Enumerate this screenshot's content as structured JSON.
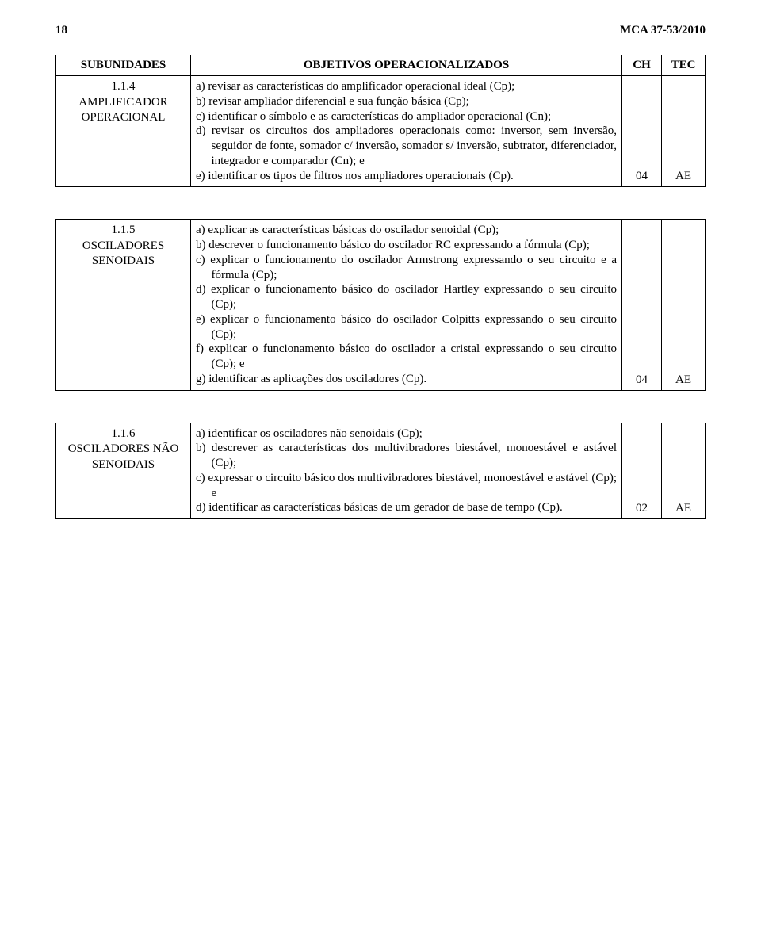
{
  "page": {
    "number": "18",
    "doc_ref": "MCA 37-53/2010"
  },
  "table_headers": {
    "subunidades": "SUBUNIDADES",
    "objetivos": "OBJETIVOS OPERACIONALIZADOS",
    "ch": "CH",
    "tec": "TEC"
  },
  "unit_1_1_4": {
    "code": "1.1.4",
    "title_line1": "AMPLIFICADOR",
    "title_line2": "OPERACIONAL",
    "items": {
      "a": "a) revisar as características do amplificador operacional ideal (Cp);",
      "b": "b) revisar ampliador diferencial e sua função básica (Cp);",
      "c": "c) identificar o símbolo e as características do ampliador operacional (Cn);",
      "d": "d) revisar os circuitos dos ampliadores operacionais como: inversor, sem inversão, seguidor de fonte, somador c/ inversão, somador s/ inversão, subtrator, diferenciador, integrador e comparador (Cn); e",
      "e": "e) identificar os tipos de filtros nos ampliadores operacionais (Cp)."
    },
    "ch": "04",
    "tec": "AE"
  },
  "unit_1_1_5": {
    "code": "1.1.5",
    "title_line1": "OSCILADORES",
    "title_line2": "SENOIDAIS",
    "items": {
      "a": "a) explicar as características básicas do oscilador senoidal (Cp);",
      "b": "b) descrever o funcionamento básico do oscilador RC expressando a fórmula (Cp);",
      "c": "c) explicar o funcionamento do oscilador Armstrong expressando o seu circuito e a fórmula (Cp);",
      "d": "d) explicar o funcionamento básico do oscilador Hartley expressando o seu circuito (Cp);",
      "e": "e) explicar o funcionamento básico do oscilador Colpitts expressando o seu circuito (Cp);",
      "f": "f) explicar o funcionamento básico do oscilador a cristal expressando o seu circuito (Cp); e",
      "g": "g) identificar as aplicações dos osciladores (Cp)."
    },
    "ch": "04",
    "tec": "AE"
  },
  "unit_1_1_6": {
    "code": "1.1.6",
    "title_line1": "OSCILADORES NÃO",
    "title_line2": "SENOIDAIS",
    "items": {
      "a": "a) identificar os osciladores não senoidais (Cp);",
      "b": "b) descrever as características  dos multivibradores biestável, monoestável e astável (Cp);",
      "c": "c) expressar o circuito básico dos multivibradores biestável, monoestável e astável (Cp); e",
      "d": "d) identificar as características básicas de um gerador de base de tempo (Cp)."
    },
    "ch": "02",
    "tec": "AE"
  }
}
